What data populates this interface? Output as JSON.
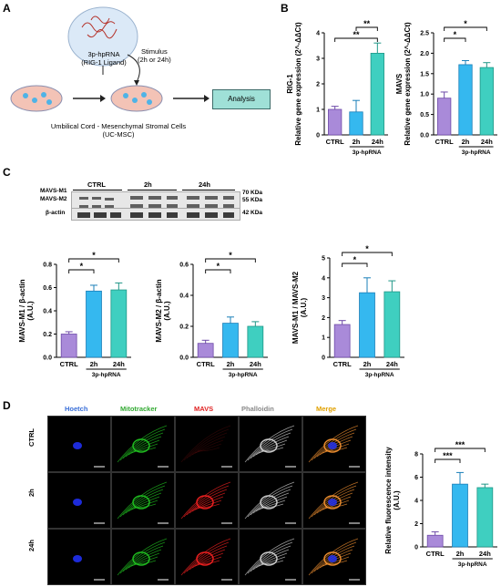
{
  "panel_labels": {
    "a": "A",
    "b": "B",
    "c": "C",
    "d": "D"
  },
  "panelA": {
    "ligand_line1": "3p-hpRNA",
    "ligand_line2": "(RIG-1 Ligand)",
    "stimulus_line1": "Stimulus",
    "stimulus_line2": "(2h or 24h)",
    "analysis": "Analysis",
    "cells_line1": "Umbilical Cord - Mesenchymal Stromal Cells",
    "cells_line2": "(UC-MSC)"
  },
  "panelC_blot": {
    "groups": [
      "CTRL",
      "2h",
      "24h"
    ],
    "rows": [
      "MAVS-M1",
      "MAVS-M2",
      "β-actin"
    ],
    "sizes": [
      "70 KDa",
      "55 KDa",
      "42 KDa"
    ]
  },
  "panelD": {
    "columns": [
      "Hoetch",
      "Mitotracker",
      "MAVS",
      "Phalloidin",
      "Merge"
    ],
    "column_colors": [
      "#3a6fd8",
      "#33aa33",
      "#e02222",
      "#888888",
      "#e0a000"
    ],
    "rows": [
      "CTRL",
      "2h",
      "24h"
    ]
  },
  "chart_data": [
    {
      "id": "rig1",
      "type": "bar",
      "ylabel": "RIG-1\nRelative gene expression (2^-ΔΔCt)",
      "categories": [
        "CTRL",
        "2h",
        "24h"
      ],
      "values": [
        1.0,
        0.9,
        3.2
      ],
      "errors": [
        0.12,
        0.45,
        0.4
      ],
      "ylim": [
        0,
        4
      ],
      "yticks": [
        0,
        1,
        2,
        3,
        4
      ],
      "group_label": "3p-hpRNA",
      "sig": [
        {
          "from": 0,
          "to": 2,
          "label": "**"
        },
        {
          "from": 1,
          "to": 2,
          "label": "**"
        }
      ]
    },
    {
      "id": "mavs",
      "type": "bar",
      "ylabel": "MAVS\nRelative gene expression (2^-ΔΔCt)",
      "categories": [
        "CTRL",
        "2h",
        "24h"
      ],
      "values": [
        0.9,
        1.72,
        1.65
      ],
      "errors": [
        0.15,
        0.1,
        0.12
      ],
      "ylim": [
        0,
        2.5
      ],
      "yticks": [
        0.0,
        0.5,
        1.0,
        1.5,
        2.0,
        2.5
      ],
      "group_label": "3p-hpRNA",
      "sig": [
        {
          "from": 0,
          "to": 1,
          "label": "*"
        },
        {
          "from": 0,
          "to": 2,
          "label": "*"
        }
      ]
    },
    {
      "id": "m1",
      "type": "bar",
      "ylabel": "MAVS-M1 / β-actin\n(A.U.)",
      "categories": [
        "CTRL",
        "2h",
        "24h"
      ],
      "values": [
        0.2,
        0.57,
        0.58
      ],
      "errors": [
        0.02,
        0.05,
        0.06
      ],
      "ylim": [
        0,
        0.8
      ],
      "yticks": [
        0.0,
        0.2,
        0.4,
        0.6,
        0.8
      ],
      "group_label": "3p-hpRNA",
      "sig": [
        {
          "from": 0,
          "to": 1,
          "label": "*"
        },
        {
          "from": 0,
          "to": 2,
          "label": "*"
        }
      ]
    },
    {
      "id": "m2",
      "type": "bar",
      "ylabel": "MAVS-M2 / β-actin\n(A.U.)",
      "categories": [
        "CTRL",
        "2h",
        "24h"
      ],
      "values": [
        0.09,
        0.22,
        0.2
      ],
      "errors": [
        0.02,
        0.04,
        0.03
      ],
      "ylim": [
        0,
        0.6
      ],
      "yticks": [
        0.0,
        0.2,
        0.4,
        0.6
      ],
      "group_label": "3p-hpRNA",
      "sig": [
        {
          "from": 0,
          "to": 1,
          "label": "*"
        },
        {
          "from": 0,
          "to": 2,
          "label": "*"
        }
      ]
    },
    {
      "id": "ratio",
      "type": "bar",
      "ylabel": "MAVS-M1 / MAVS-M2\n(A.U.)",
      "categories": [
        "CTRL",
        "2h",
        "24h"
      ],
      "values": [
        1.65,
        3.25,
        3.3
      ],
      "errors": [
        0.2,
        0.75,
        0.55
      ],
      "ylim": [
        0,
        5
      ],
      "yticks": [
        0,
        1,
        2,
        3,
        4,
        5
      ],
      "group_label": "3p-hpRNA",
      "sig": [
        {
          "from": 0,
          "to": 1,
          "label": "*"
        },
        {
          "from": 0,
          "to": 2,
          "label": "*"
        }
      ]
    },
    {
      "id": "fluor",
      "type": "bar",
      "ylabel": "MAVS\nRelative fluorescence intensity\n(A.U.)",
      "categories": [
        "CTRL",
        "2h",
        "24h"
      ],
      "values": [
        1.0,
        5.4,
        5.1
      ],
      "errors": [
        0.3,
        1.0,
        0.3
      ],
      "ylim": [
        0,
        8
      ],
      "yticks": [
        0,
        2,
        4,
        6,
        8
      ],
      "group_label": "3p-hpRNA",
      "sig": [
        {
          "from": 0,
          "to": 1,
          "label": "***"
        },
        {
          "from": 0,
          "to": 2,
          "label": "***"
        }
      ]
    }
  ],
  "colors": {
    "ctrl": "#a98ad9",
    "h2": "#35b8ef",
    "h24": "#3fcfc0",
    "ctrl_edge": "#6e4aa8",
    "h2_edge": "#1a7fb8",
    "h24_edge": "#1f9687"
  }
}
